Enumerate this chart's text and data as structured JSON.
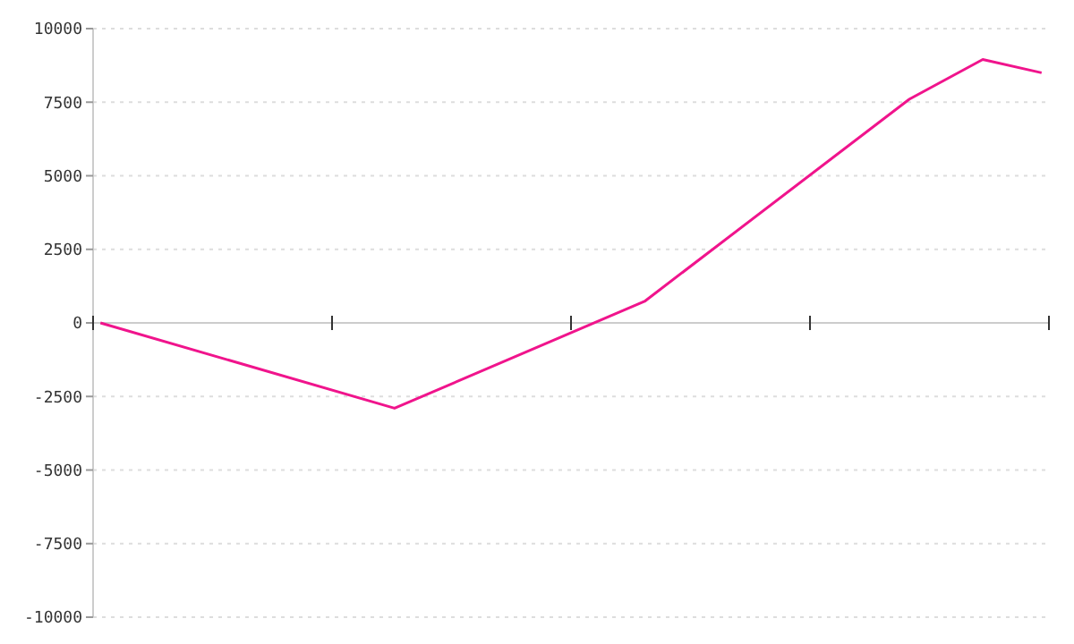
{
  "chart_data": {
    "type": "line",
    "categories": [
      null,
      null,
      null,
      null,
      null,
      null,
      null,
      null,
      null,
      null,
      null,
      null,
      null,
      null,
      null,
      null,
      null,
      null,
      null,
      null,
      null,
      null,
      null,
      null,
      null,
      null,
      null,
      null,
      null,
      null,
      null,
      null,
      null,
      null,
      null,
      null,
      null,
      null,
      null,
      null,
      null,
      null,
      null,
      null,
      null,
      null,
      null,
      null,
      null,
      null,
      null,
      null,
      null,
      null,
      null,
      null,
      null,
      null,
      null,
      null,
      null,
      null,
      null,
      null,
      null
    ],
    "series": [
      {
        "color": "#f0148c",
        "values": [
          0,
          null,
          null,
          null,
          null,
          null,
          null,
          null,
          null,
          null,
          null,
          null,
          null,
          null,
          null,
          null,
          null,
          null,
          null,
          null,
          -2900,
          null,
          null,
          null,
          null,
          null,
          null,
          null,
          null,
          null,
          null,
          null,
          null,
          null,
          null,
          null,
          null,
          730,
          null,
          null,
          null,
          null,
          null,
          null,
          null,
          null,
          null,
          null,
          null,
          null,
          null,
          null,
          null,
          null,
          null,
          7600,
          null,
          null,
          null,
          null,
          8950,
          null,
          null,
          null,
          8500
        ]
      }
    ],
    "ylim": [
      -10000,
      10000
    ],
    "yticks": [
      -10000,
      -7500,
      -5000,
      -2500,
      0,
      2500,
      5000,
      7500,
      10000
    ],
    "grid": "y",
    "line_style": "solid"
  }
}
